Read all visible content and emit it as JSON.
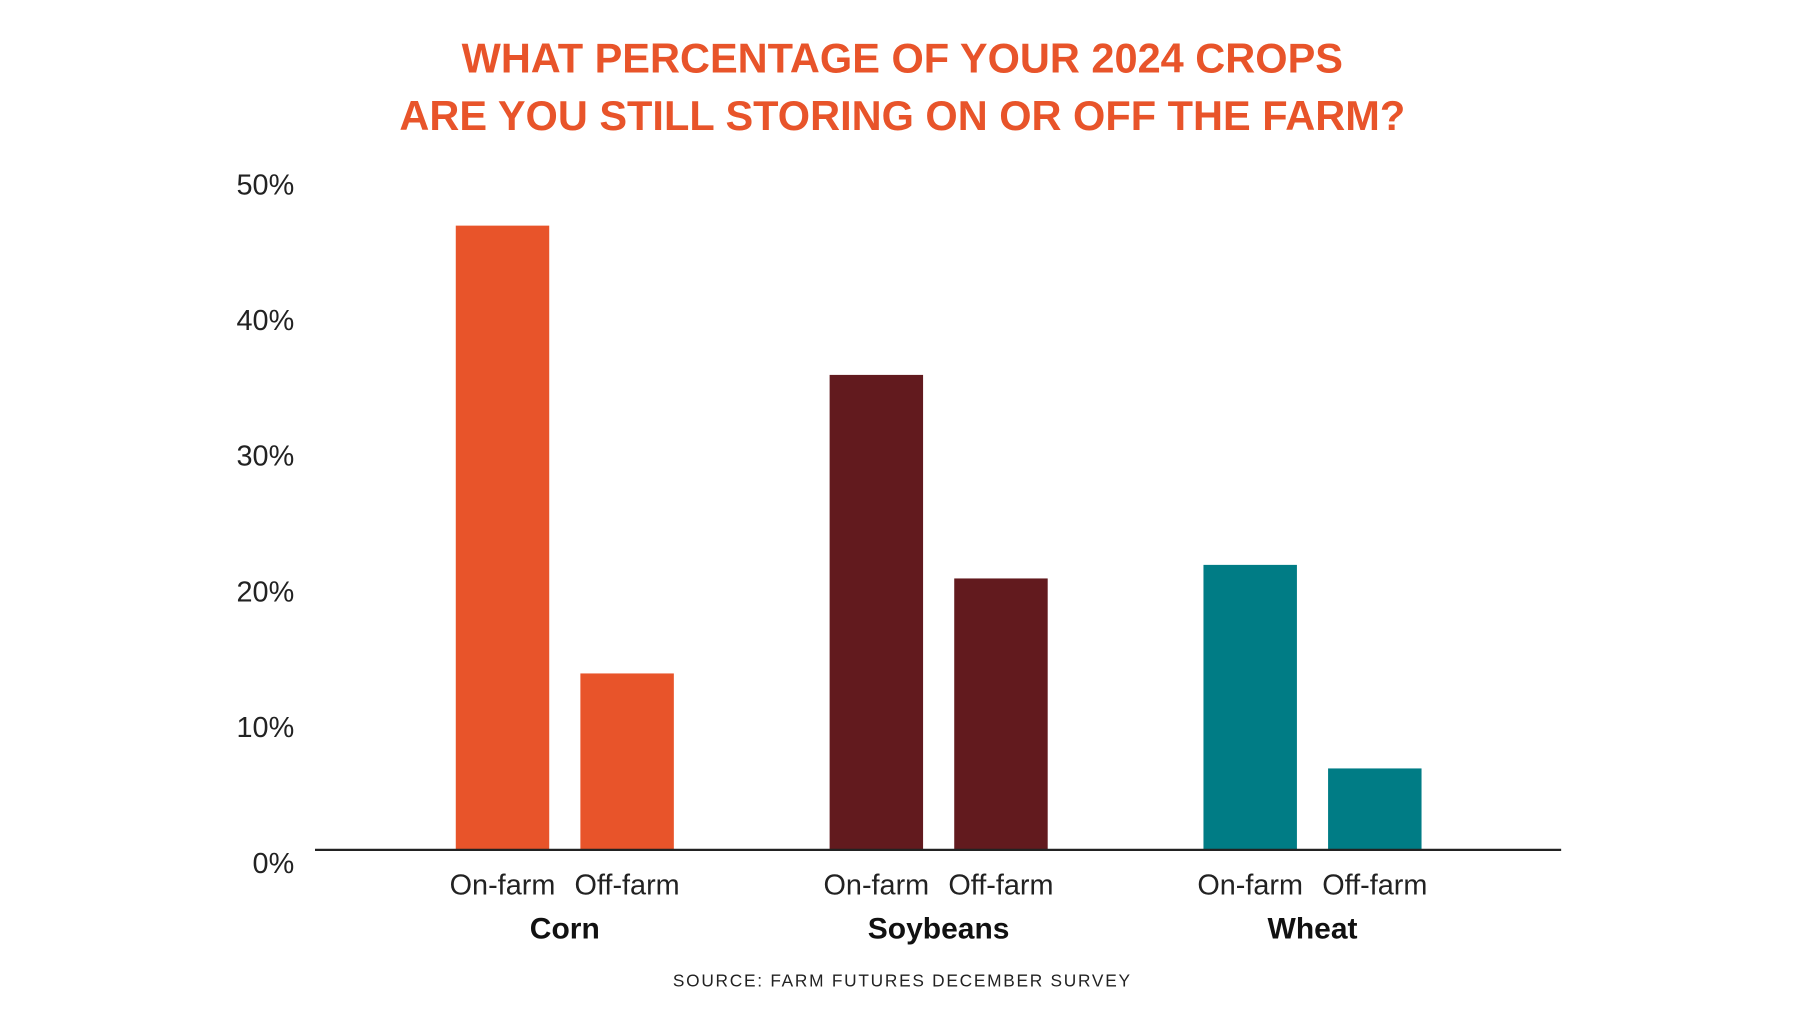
{
  "chart_data": {
    "type": "bar",
    "title_lines": [
      "WHAT PERCENTAGE OF YOUR 2024 CROPS",
      "ARE YOU STILL STORING ON OR OFF THE FARM?"
    ],
    "groups": [
      {
        "name": "Corn",
        "color": "#E8542A",
        "bars": [
          {
            "label": "On-farm",
            "value": 46
          },
          {
            "label": "Off-farm",
            "value": 13
          }
        ]
      },
      {
        "name": "Soybeans",
        "color": "#621A1E",
        "bars": [
          {
            "label": "On-farm",
            "value": 35
          },
          {
            "label": "Off-farm",
            "value": 20
          }
        ]
      },
      {
        "name": "Wheat",
        "color": "#007C85",
        "bars": [
          {
            "label": "On-farm",
            "value": 21
          },
          {
            "label": "Off-farm",
            "value": 6
          }
        ]
      }
    ],
    "y_ticks": [
      "0%",
      "10%",
      "20%",
      "30%",
      "40%",
      "50%"
    ],
    "ylim": [
      0,
      50
    ],
    "grid": false,
    "source": "SOURCE: FARM FUTURES DECEMBER SURVEY"
  }
}
